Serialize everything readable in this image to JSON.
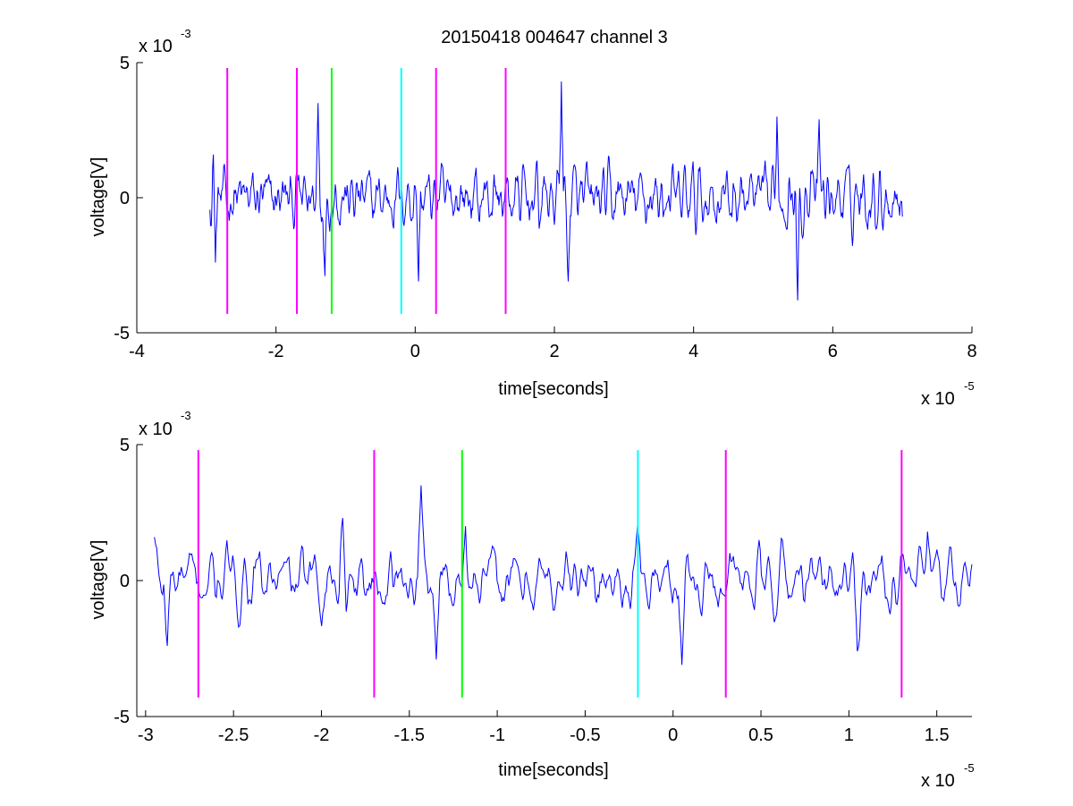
{
  "chart_data": [
    {
      "type": "line",
      "title": "20150418 004647 channel 3",
      "xlabel": "time[seconds]",
      "ylabel": "voltage[V]",
      "x_multiplier": "x 10",
      "x_exponent": "-5",
      "y_multiplier": "x 10",
      "y_exponent": "-3",
      "xlim": [
        -4e-05,
        8e-05
      ],
      "ylim": [
        -0.005,
        0.005
      ],
      "x_ticks": [
        -4,
        -2,
        0,
        2,
        4,
        6,
        8
      ],
      "x_tick_labels": [
        "-4",
        "-2",
        "0",
        "2",
        "4",
        "6",
        "8"
      ],
      "y_ticks": [
        -5,
        0,
        5
      ],
      "y_tick_labels": [
        "-5",
        "0",
        "5"
      ],
      "signal": {
        "color": "#0000ff",
        "x_start": -2.95e-05,
        "x_end": 7e-05,
        "samples": 1000,
        "envelope_y": [
          0.0012,
          0.001,
          0.0012,
          0.0013,
          0.0012,
          0.0012,
          0.0011,
          0.0012,
          0.0013,
          0.0012,
          0.0014,
          0.0012,
          0.0013,
          0.0013,
          0.0014,
          0.0015,
          0.0014,
          0.0013,
          0.0012,
          0.0013,
          0.0015,
          0.0016,
          0.0014,
          0.0013,
          0.0013,
          0.0016,
          0.0018,
          0.0016
        ],
        "sample_points": [
          {
            "x": -2.9e-05,
            "y": 0.0016
          },
          {
            "x": -2.87e-05,
            "y": -0.0024
          },
          {
            "x": -1.4e-05,
            "y": 0.0035
          },
          {
            "x": -1.3e-05,
            "y": -0.0029
          },
          {
            "x": 5e-07,
            "y": -0.0031
          },
          {
            "x": 2.1e-05,
            "y": 0.0043
          },
          {
            "x": 2.2e-05,
            "y": -0.0031
          },
          {
            "x": 5.2e-05,
            "y": 0.003
          },
          {
            "x": 5.5e-05,
            "y": -0.0038
          },
          {
            "x": 5.8e-05,
            "y": 0.0029
          },
          {
            "x": 7e-05,
            "y": -0.0007
          }
        ]
      },
      "markers": [
        {
          "x": -2.7e-05,
          "color": "#ff00ff",
          "y_top": 0.0048,
          "y_bottom": -0.0043
        },
        {
          "x": -1.7e-05,
          "color": "#ff00ff",
          "y_top": 0.0048,
          "y_bottom": -0.0043
        },
        {
          "x": -1.2e-05,
          "color": "#00ff00",
          "y_top": 0.0048,
          "y_bottom": -0.0043
        },
        {
          "x": -2e-06,
          "color": "#00ffff",
          "y_top": 0.0048,
          "y_bottom": -0.0043
        },
        {
          "x": 3e-06,
          "color": "#ff00ff",
          "y_top": 0.0048,
          "y_bottom": -0.0043
        },
        {
          "x": 1.3e-05,
          "color": "#ff00ff",
          "y_top": 0.0048,
          "y_bottom": -0.0043
        }
      ]
    },
    {
      "type": "line",
      "title": "",
      "xlabel": "time[seconds]",
      "ylabel": "voltage[V]",
      "x_multiplier": "x 10",
      "x_exponent": "-5",
      "y_multiplier": "x 10",
      "y_exponent": "-3",
      "xlim": [
        -3.05e-05,
        1.7e-05
      ],
      "ylim": [
        -0.005,
        0.005
      ],
      "x_ticks": [
        -3,
        -2.5,
        -2,
        -1.5,
        -1,
        -0.5,
        0,
        0.5,
        1,
        1.5
      ],
      "x_tick_labels": [
        "-3",
        "-2.5",
        "-2",
        "-1.5",
        "-1",
        "-0.5",
        "0",
        "0.5",
        "1",
        "1.5"
      ],
      "y_ticks": [
        -5,
        0,
        5
      ],
      "y_tick_labels": [
        "-5",
        "0",
        "5"
      ],
      "signal": {
        "color": "#0000ff",
        "x_start": -2.95e-05,
        "x_end": 1.7e-05,
        "samples": 700,
        "sample_points": [
          {
            "x": -2.95e-05,
            "y": 0.0016
          },
          {
            "x": -2.88e-05,
            "y": -0.0024
          },
          {
            "x": -1.88e-05,
            "y": 0.0023
          },
          {
            "x": -1.43e-05,
            "y": 0.0035
          },
          {
            "x": -1.35e-05,
            "y": -0.0029
          },
          {
            "x": -1.18e-05,
            "y": 0.002
          },
          {
            "x": -2e-06,
            "y": 0.002
          },
          {
            "x": 5e-07,
            "y": -0.0031
          },
          {
            "x": 1.05e-05,
            "y": -0.0026
          },
          {
            "x": 1.45e-05,
            "y": 0.0018
          },
          {
            "x": 1.7e-05,
            "y": 0.0006
          }
        ]
      },
      "markers": [
        {
          "x": -2.7e-05,
          "color": "#ff00ff",
          "y_top": 0.0048,
          "y_bottom": -0.0043
        },
        {
          "x": -1.7e-05,
          "color": "#ff00ff",
          "y_top": 0.0048,
          "y_bottom": -0.0043
        },
        {
          "x": -1.2e-05,
          "color": "#00ff00",
          "y_top": 0.0048,
          "y_bottom": -0.0043
        },
        {
          "x": -2e-06,
          "color": "#00ffff",
          "y_top": 0.0048,
          "y_bottom": -0.0043
        },
        {
          "x": 3e-06,
          "color": "#ff00ff",
          "y_top": 0.0048,
          "y_bottom": -0.0043
        },
        {
          "x": 1.3e-05,
          "color": "#ff00ff",
          "y_top": 0.0048,
          "y_bottom": -0.0043
        }
      ]
    }
  ]
}
